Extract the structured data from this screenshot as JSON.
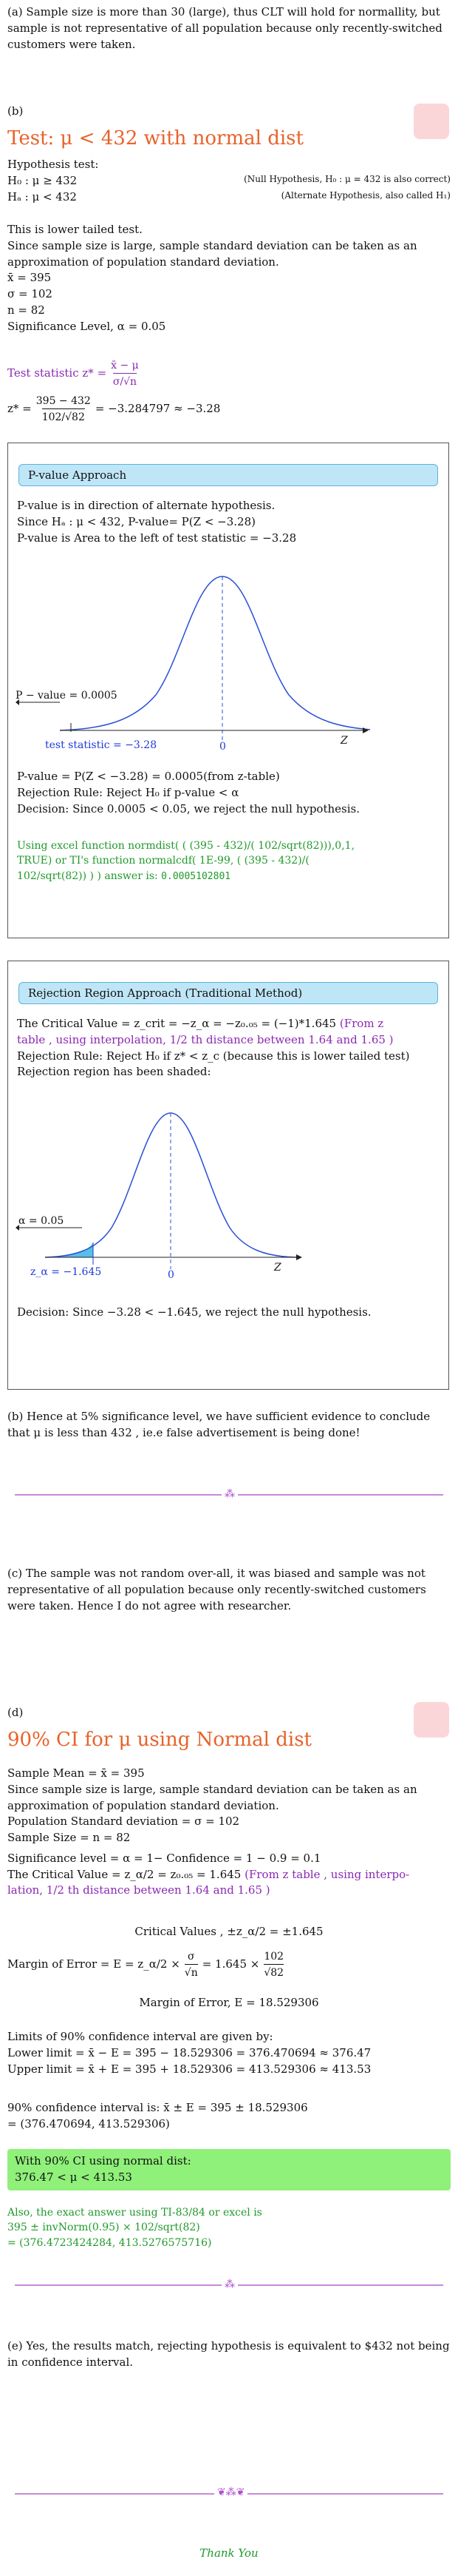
{
  "part_a": {
    "text": "(a) Sample size is more than 30 (large), thus CLT will hold for normallity, but sample is not representative of all population because only recently-switched customers were taken."
  },
  "part_b": {
    "label": "(b)",
    "title": "Test: μ < 432 with normal dist",
    "hyp_label": "Hypothesis test:",
    "h0": "H₀ : μ ≥ 432",
    "h0_note": "(Null Hypothesis, H₀ : μ = 432 is also correct)",
    "ha": "Hₐ : μ < 432",
    "ha_note": "(Alternate Hypothesis, also called H₁)",
    "lower_tailed": "This is lower tailed test.",
    "approx": "Since sample size is large, sample standard deviation can be taken as an approximation of population standard deviation.",
    "xbar": "x̄ = 395",
    "sigma": "σ = 102",
    "n": "n = 82",
    "alpha": "Significance Level, α = 0.05",
    "test_stat_label": "Test statistic z* =",
    "test_stat_num": "x̄ − μ",
    "test_stat_den": "σ/√n",
    "zcalc_left": "z* =",
    "zcalc_num": "395 − 432",
    "zcalc_den": "102/√82",
    "zcalc_right": "= −3.284797 ≈ −3.28"
  },
  "pvalue_box": {
    "heading": "P-value Approach",
    "l1": "P-value is in direction of alternate hypothesis.",
    "l2": "Since Hₐ : μ < 432, P-value= P(Z < −3.28)",
    "l3": "P-value is Area to the left of test statistic = −3.28",
    "graph_p_label": "P − value = 0.0005",
    "graph_stat_label": "test statistic = −3.28",
    "graph_zero": "0",
    "graph_z": "Z",
    "l4": "P-value = P(Z < −3.28) = 0.0005(from z-table)",
    "l5": "Rejection Rule: Reject H₀ if p-value < α",
    "l6": "Decision: Since 0.0005 < 0.05, we reject the null hypothesis.",
    "excel_1": "Using excel function normdist( ( (395 - 432)/( 102/sqrt(82))),0,1,",
    "excel_2": "TRUE) or TI's function normalcdf( 1E-99, ( (395 - 432)/(",
    "excel_3": "102/sqrt(82)) ) ) answer is:",
    "excel_ans": "0.0005102801"
  },
  "rejection_box": {
    "heading": "Rejection Region Approach (Traditional Method)",
    "l1a": "The Critical Value = z_crit = −z_α = −z₀.₀₅ = (−1)*1.645",
    "l1b": "(From z",
    "l1c": "table , using interpolation, 1/2 th distance between 1.64 and 1.65 )",
    "l2": "Rejection Rule: Reject H₀ if z* < z_c (because this is lower tailed test)",
    "l3": "Rejection region has been shaded:",
    "graph_alpha": "α = 0.05",
    "graph_za": "z_α = −1.645",
    "graph_zero": "0",
    "graph_z": "Z",
    "l4": "Decision: Since −3.28 < −1.645, we reject the null hypothesis."
  },
  "part_b_conclusion": "(b) Hence at 5% significance level, we have sufficient evidence to conclude that μ is less than 432 , ie.e false advertisement is being done!",
  "part_c": "(c) The sample was not random over-all, it was biased and sample was not representative of all population because only recently-switched customers were taken. Hence I do not agree with researcher.",
  "part_d": {
    "label": "(d)",
    "title": "90% CI for μ using Normal dist",
    "mean": "Sample Mean = x̄ = 395",
    "approx": "Since sample size is large, sample standard deviation can be taken as an approximation of population standard deviation.",
    "sd": "Population Standard deviation = σ = 102",
    "size": "Sample Size = n = 82",
    "alpha": "Significance level = α = 1− Confidence = 1 − 0.9 = 0.1",
    "crit_a": "The Critical Value = z_α/2 = z₀.₀₅ = 1.645",
    "crit_b": "(From z table , using interpo-",
    "crit_c": "lation, 1/2 th distance between 1.64 and 1.65 )",
    "crit_values": "Critical Values , ±z_α/2 = ±1.645",
    "moe_left": "Margin of Error = E = z_α/2 ×",
    "moe_f1_num": "σ",
    "moe_f1_den": "√n",
    "moe_mid": "= 1.645 ×",
    "moe_f2_num": "102",
    "moe_f2_den": "√82",
    "moe_result": "Margin of Error, E = 18.529306",
    "limits_label": "Limits of 90% confidence interval are given by:",
    "lower": "Lower limit = x̄ − E = 395 − 18.529306 = 376.470694 ≈ 376.47",
    "upper": "Upper limit = x̄ + E = 395 + 18.529306 = 413.529306 ≈ 413.53",
    "ci_1": "90% confidence interval is: x̄ ± E = 395 ± 18.529306",
    "ci_2": "= (376.470694, 413.529306)",
    "box_1": "With 90% CI using normal dist:",
    "box_2": "376.47 < μ < 413.53",
    "ti_1": "Also, the exact answer using TI-83/84 or excel is",
    "ti_2": "395 ± invNorm(0.95) × 102/sqrt(82)",
    "ti_3": "= (376.4723424284, 413.5276575716)"
  },
  "part_e": "(e) Yes, the results match, rejecting hypothesis is equivalent to $432 not being in confidence interval.",
  "thanks": "Thank You"
}
